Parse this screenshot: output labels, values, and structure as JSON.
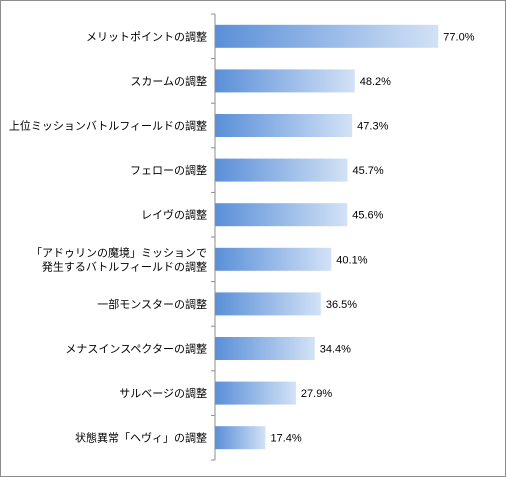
{
  "chart_data": {
    "type": "bar",
    "orientation": "horizontal",
    "title": "",
    "xlabel": "",
    "ylabel": "",
    "grid": false,
    "legend": "none",
    "xlim": [
      0,
      100
    ],
    "categories": [
      [
        "メリットポイントの調整"
      ],
      [
        "スカームの調整"
      ],
      [
        "上位ミッションバトルフィールドの調整"
      ],
      [
        "フェローの調整"
      ],
      [
        "レイヴの調整"
      ],
      [
        "「アドゥリンの魔境」ミッションで",
        "発生するバトルフィールドの調整"
      ],
      [
        "一部モンスターの調整"
      ],
      [
        "メナスインスペクターの調整"
      ],
      [
        "サルベージの調整"
      ],
      [
        "状態異常「ヘヴィ」の調整"
      ]
    ],
    "values": [
      77.0,
      48.2,
      47.3,
      45.7,
      45.6,
      40.1,
      36.5,
      34.4,
      27.9,
      17.4
    ],
    "value_labels": [
      "77.0%",
      "48.2%",
      "47.3%",
      "45.7%",
      "45.6%",
      "40.1%",
      "36.5%",
      "34.4%",
      "27.9%",
      "17.4%"
    ],
    "colors": {
      "bar_start": "#5a8fd8",
      "bar_end": "#d2e2f6",
      "axis": "#8c8c8c"
    }
  }
}
